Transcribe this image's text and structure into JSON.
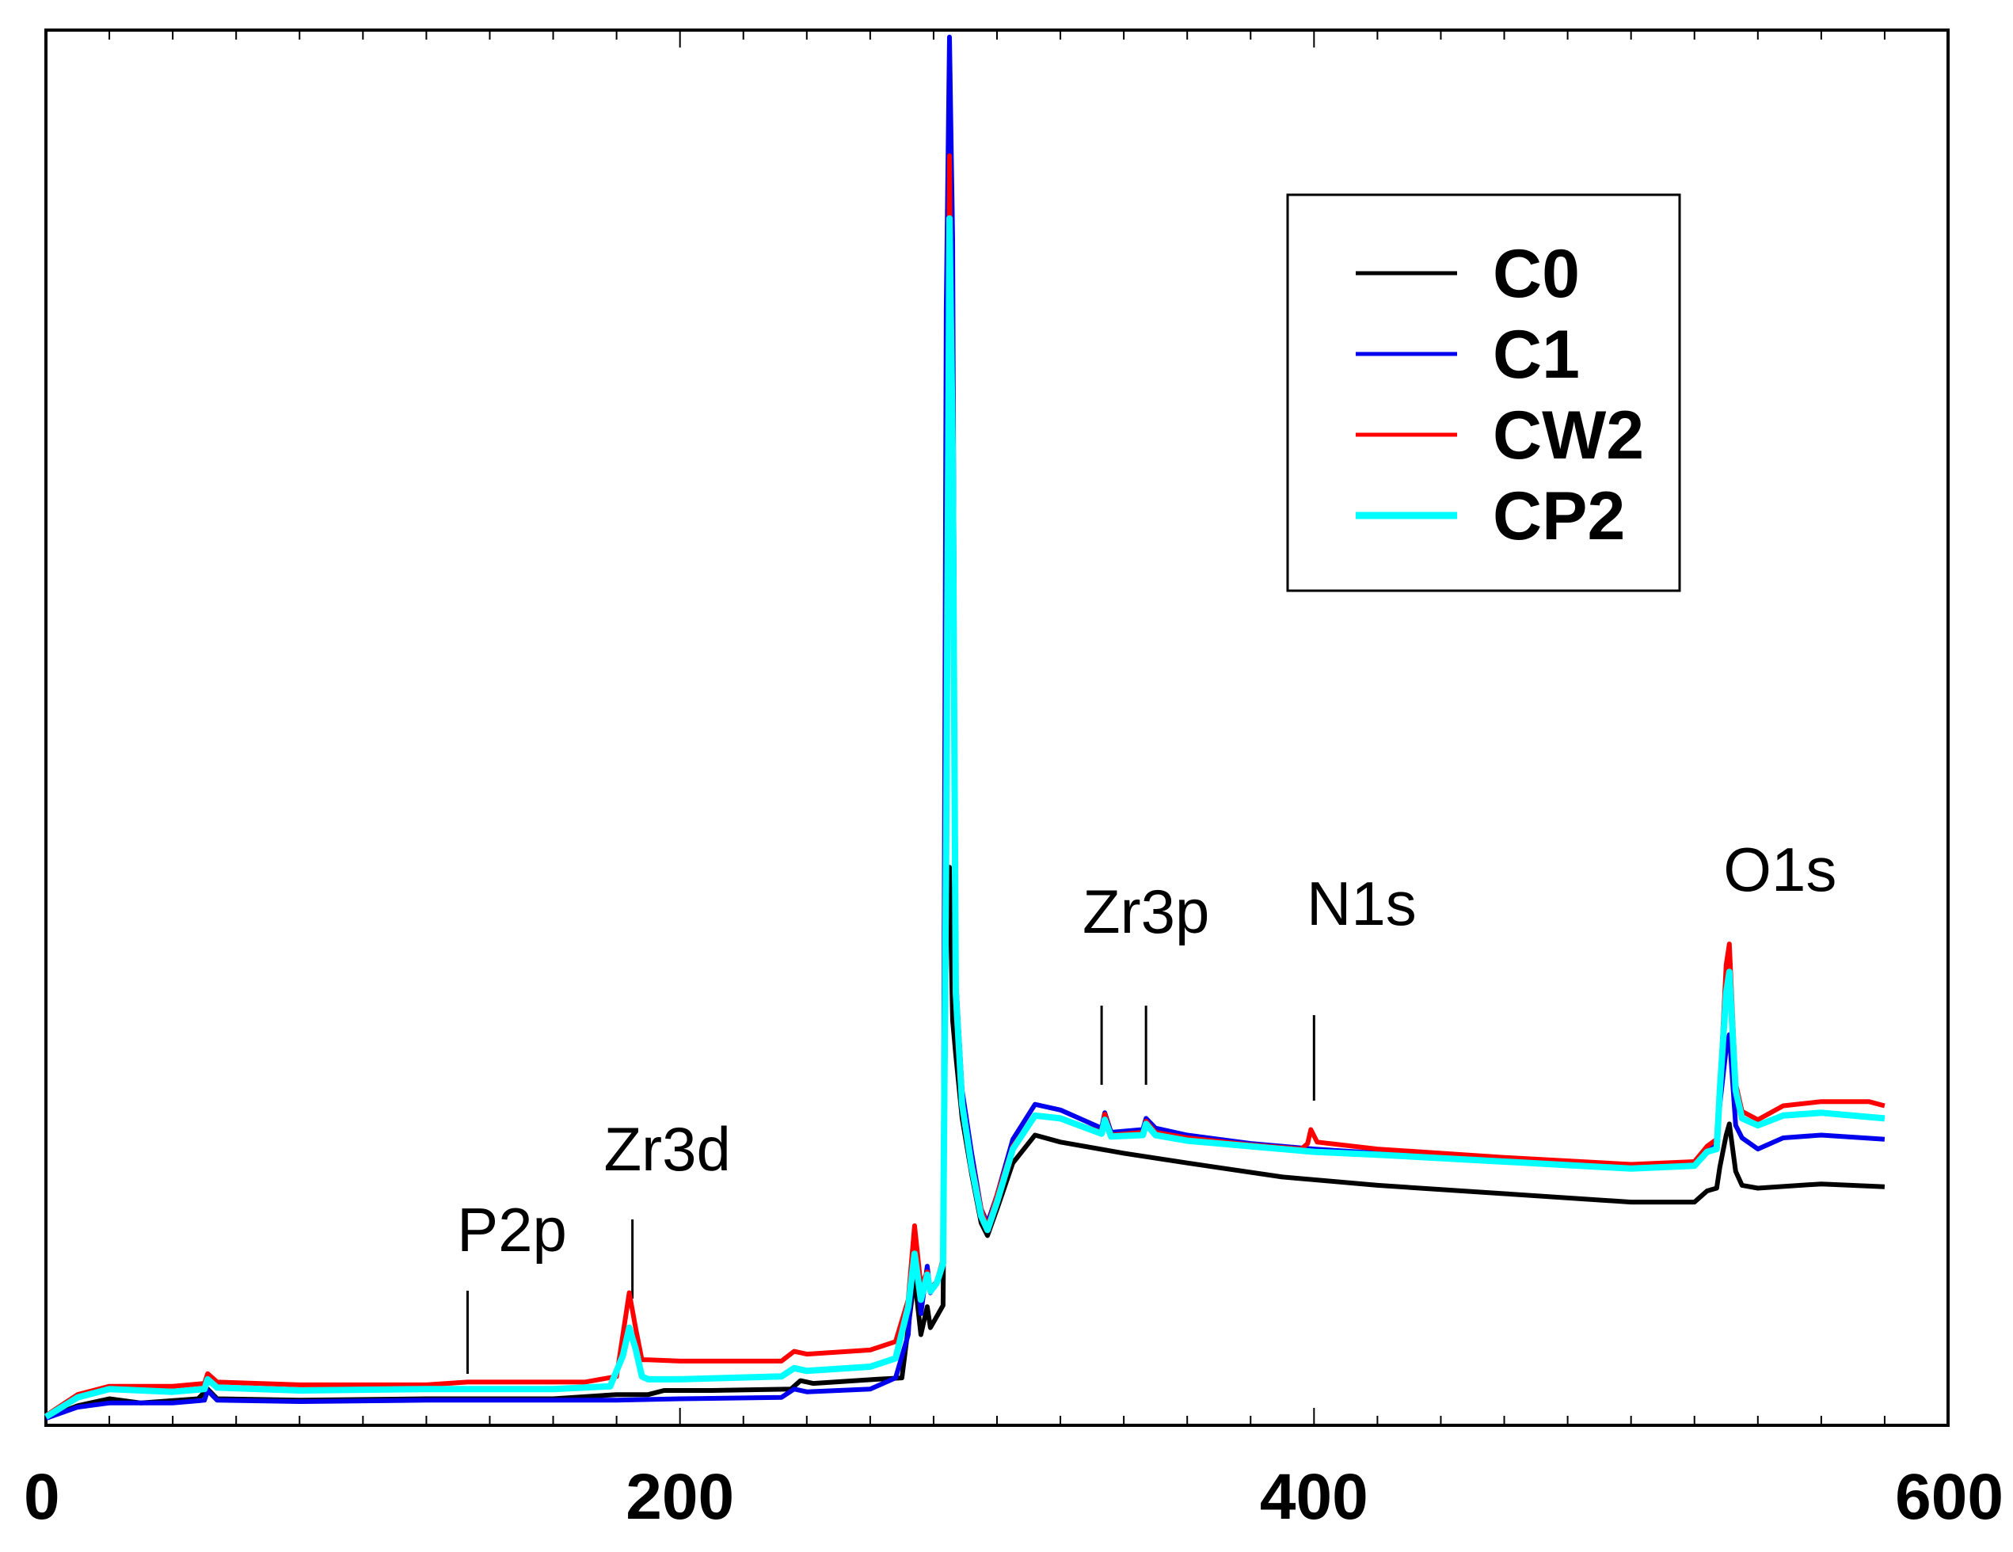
{
  "chart_data": {
    "type": "line",
    "title": "",
    "xlabel": "",
    "ylabel": "",
    "xlim": [
      0,
      600
    ],
    "ylim": [
      0,
      100
    ],
    "x_ticks": [
      0,
      200,
      400,
      600
    ],
    "x_tick_labels": [
      "0",
      "200",
      "400",
      "600"
    ],
    "grid": false,
    "legend_position": "top-right",
    "legend": [
      "C0",
      "C1",
      "CW2",
      "CP2"
    ],
    "annotations": [
      {
        "label": "P2p",
        "x": 133
      },
      {
        "label": "Zr3d",
        "x": 185
      },
      {
        "label": "Zr3p",
        "x": 333
      },
      {
        "label": "Zr3p",
        "x": 347
      },
      {
        "label": "N1s",
        "x": 400
      },
      {
        "label": "O1s",
        "x": 532
      }
    ],
    "annotation_labels": [
      {
        "text": "P2p",
        "x": 147
      },
      {
        "text": "Zr3d",
        "x": 196
      },
      {
        "text": "Zr3p",
        "x": 347
      },
      {
        "text": "N1s",
        "x": 415
      },
      {
        "text": "O1s",
        "x": 547
      }
    ],
    "series": [
      {
        "name": "C0",
        "color": "#000000",
        "points": [
          [
            0,
            0.5
          ],
          [
            10,
            1.4
          ],
          [
            20,
            1.9
          ],
          [
            30,
            1.6
          ],
          [
            48,
            1.9
          ],
          [
            51,
            2.6
          ],
          [
            54,
            1.9
          ],
          [
            80,
            1.8
          ],
          [
            120,
            1.9
          ],
          [
            160,
            1.9
          ],
          [
            180,
            2.2
          ],
          [
            190,
            2.2
          ],
          [
            195,
            2.5
          ],
          [
            210,
            2.5
          ],
          [
            235,
            2.6
          ],
          [
            238,
            3.2
          ],
          [
            242,
            3.0
          ],
          [
            262,
            3.3
          ],
          [
            270,
            3.4
          ],
          [
            274,
            10.6
          ],
          [
            276,
            6.5
          ],
          [
            278,
            8.5
          ],
          [
            279,
            7.0
          ],
          [
            281,
            7.8
          ],
          [
            283,
            8.6
          ],
          [
            284,
            35.0
          ],
          [
            285,
            40.0
          ],
          [
            286,
            29.0
          ],
          [
            287,
            26.5
          ],
          [
            289,
            22.0
          ],
          [
            292,
            18.0
          ],
          [
            295,
            14.5
          ],
          [
            297,
            13.6
          ],
          [
            300,
            15.5
          ],
          [
            305,
            18.8
          ],
          [
            312,
            20.8
          ],
          [
            320,
            20.3
          ],
          [
            340,
            19.5
          ],
          [
            360,
            18.8
          ],
          [
            390,
            17.8
          ],
          [
            420,
            17.2
          ],
          [
            460,
            16.6
          ],
          [
            500,
            16.0
          ],
          [
            520,
            16.0
          ],
          [
            524,
            16.8
          ],
          [
            527,
            17.0
          ],
          [
            528,
            18.5
          ],
          [
            530,
            20.8
          ],
          [
            531,
            21.6
          ],
          [
            533,
            18.2
          ],
          [
            535,
            17.2
          ],
          [
            540,
            17.0
          ],
          [
            560,
            17.3
          ],
          [
            580,
            17.1
          ]
        ]
      },
      {
        "name": "C1",
        "color": "#0000ee",
        "points": [
          [
            0,
            0.5
          ],
          [
            10,
            1.3
          ],
          [
            20,
            1.6
          ],
          [
            40,
            1.6
          ],
          [
            50,
            1.8
          ],
          [
            51,
            2.5
          ],
          [
            54,
            1.8
          ],
          [
            80,
            1.7
          ],
          [
            120,
            1.8
          ],
          [
            180,
            1.8
          ],
          [
            200,
            1.9
          ],
          [
            232,
            2.0
          ],
          [
            236,
            2.6
          ],
          [
            240,
            2.4
          ],
          [
            260,
            2.6
          ],
          [
            268,
            3.4
          ],
          [
            272,
            6.5
          ],
          [
            274,
            13.4
          ],
          [
            276,
            8.0
          ],
          [
            278,
            11.4
          ],
          [
            279,
            9.5
          ],
          [
            281,
            10.2
          ],
          [
            283,
            11.8
          ],
          [
            284,
            80.0
          ],
          [
            285,
            99.5
          ],
          [
            286,
            85.0
          ],
          [
            287,
            32.0
          ],
          [
            289,
            24.0
          ],
          [
            292,
            19.5
          ],
          [
            295,
            15.5
          ],
          [
            297,
            14.5
          ],
          [
            300,
            16.5
          ],
          [
            305,
            20.5
          ],
          [
            312,
            23.0
          ],
          [
            320,
            22.6
          ],
          [
            333,
            21.3
          ],
          [
            334,
            22.4
          ],
          [
            336,
            21.0
          ],
          [
            346,
            21.2
          ],
          [
            347,
            22.0
          ],
          [
            350,
            21.3
          ],
          [
            360,
            20.8
          ],
          [
            380,
            20.2
          ],
          [
            400,
            19.8
          ],
          [
            420,
            19.5
          ],
          [
            460,
            19.1
          ],
          [
            500,
            18.4
          ],
          [
            520,
            18.6
          ],
          [
            524,
            19.8
          ],
          [
            527,
            20.2
          ],
          [
            528,
            23.0
          ],
          [
            530,
            27.0
          ],
          [
            531,
            28.0
          ],
          [
            533,
            21.5
          ],
          [
            535,
            20.6
          ],
          [
            540,
            19.8
          ],
          [
            548,
            20.6
          ],
          [
            560,
            20.8
          ],
          [
            580,
            20.5
          ]
        ]
      },
      {
        "name": "CW2",
        "color": "#ff0000",
        "points": [
          [
            0,
            0.7
          ],
          [
            10,
            2.2
          ],
          [
            20,
            2.8
          ],
          [
            40,
            2.8
          ],
          [
            50,
            3.0
          ],
          [
            51,
            3.7
          ],
          [
            54,
            3.1
          ],
          [
            80,
            2.9
          ],
          [
            120,
            2.9
          ],
          [
            133,
            3.1
          ],
          [
            170,
            3.1
          ],
          [
            180,
            3.5
          ],
          [
            182,
            6.5
          ],
          [
            184,
            9.5
          ],
          [
            186,
            7.0
          ],
          [
            188,
            4.7
          ],
          [
            190,
            4.7
          ],
          [
            200,
            4.6
          ],
          [
            232,
            4.6
          ],
          [
            236,
            5.3
          ],
          [
            240,
            5.1
          ],
          [
            260,
            5.4
          ],
          [
            268,
            6.0
          ],
          [
            272,
            9.0
          ],
          [
            274,
            14.3
          ],
          [
            276,
            10.0
          ],
          [
            278,
            11.0
          ],
          [
            279,
            9.8
          ],
          [
            281,
            10.3
          ],
          [
            283,
            11.9
          ],
          [
            284,
            56.0
          ],
          [
            285,
            91.0
          ],
          [
            286,
            64.0
          ],
          [
            287,
            30.0
          ],
          [
            289,
            23.0
          ],
          [
            292,
            18.9
          ],
          [
            295,
            15.5
          ],
          [
            297,
            14.2
          ],
          [
            300,
            16.5
          ],
          [
            305,
            20.0
          ],
          [
            312,
            22.2
          ],
          [
            320,
            22.0
          ],
          [
            333,
            21.0
          ],
          [
            334,
            22.3
          ],
          [
            336,
            20.8
          ],
          [
            346,
            21.0
          ],
          [
            347,
            21.8
          ],
          [
            350,
            21.0
          ],
          [
            360,
            20.6
          ],
          [
            380,
            20.1
          ],
          [
            396,
            19.8
          ],
          [
            398,
            20.2
          ],
          [
            399,
            21.2
          ],
          [
            401,
            20.3
          ],
          [
            420,
            19.8
          ],
          [
            460,
            19.2
          ],
          [
            500,
            18.7
          ],
          [
            520,
            18.9
          ],
          [
            524,
            20.0
          ],
          [
            527,
            20.5
          ],
          [
            528,
            24.0
          ],
          [
            530,
            33.0
          ],
          [
            531,
            34.5
          ],
          [
            533,
            24.5
          ],
          [
            535,
            22.5
          ],
          [
            540,
            21.9
          ],
          [
            548,
            22.9
          ],
          [
            560,
            23.2
          ],
          [
            575,
            23.2
          ],
          [
            580,
            22.9
          ]
        ]
      },
      {
        "name": "CP2",
        "color": "#00ffff",
        "points": [
          [
            0,
            0.6
          ],
          [
            10,
            2.0
          ],
          [
            20,
            2.6
          ],
          [
            40,
            2.4
          ],
          [
            50,
            2.6
          ],
          [
            51,
            3.3
          ],
          [
            54,
            2.7
          ],
          [
            80,
            2.5
          ],
          [
            120,
            2.6
          ],
          [
            160,
            2.6
          ],
          [
            178,
            2.8
          ],
          [
            182,
            5.0
          ],
          [
            184,
            7.0
          ],
          [
            186,
            5.5
          ],
          [
            188,
            3.5
          ],
          [
            190,
            3.3
          ],
          [
            200,
            3.3
          ],
          [
            232,
            3.5
          ],
          [
            236,
            4.1
          ],
          [
            240,
            3.9
          ],
          [
            260,
            4.2
          ],
          [
            268,
            4.8
          ],
          [
            272,
            8.5
          ],
          [
            274,
            12.3
          ],
          [
            276,
            9.0
          ],
          [
            278,
            10.8
          ],
          [
            279,
            9.6
          ],
          [
            281,
            10.2
          ],
          [
            283,
            11.6
          ],
          [
            284,
            42.0
          ],
          [
            285,
            86.5
          ],
          [
            286,
            70.0
          ],
          [
            287,
            31.0
          ],
          [
            289,
            23.0
          ],
          [
            292,
            18.5
          ],
          [
            295,
            15.0
          ],
          [
            297,
            14.0
          ],
          [
            300,
            16.0
          ],
          [
            305,
            19.8
          ],
          [
            312,
            22.2
          ],
          [
            320,
            22.0
          ],
          [
            333,
            20.9
          ],
          [
            334,
            21.9
          ],
          [
            336,
            20.7
          ],
          [
            346,
            20.8
          ],
          [
            347,
            21.6
          ],
          [
            350,
            20.8
          ],
          [
            360,
            20.4
          ],
          [
            380,
            20.0
          ],
          [
            400,
            19.6
          ],
          [
            420,
            19.4
          ],
          [
            460,
            18.9
          ],
          [
            500,
            18.4
          ],
          [
            520,
            18.6
          ],
          [
            524,
            19.6
          ],
          [
            527,
            19.8
          ],
          [
            528,
            24.0
          ],
          [
            530,
            31.0
          ],
          [
            531,
            32.5
          ],
          [
            533,
            24.0
          ],
          [
            535,
            22.0
          ],
          [
            540,
            21.5
          ],
          [
            548,
            22.2
          ],
          [
            560,
            22.4
          ],
          [
            580,
            22.0
          ]
        ]
      }
    ]
  }
}
